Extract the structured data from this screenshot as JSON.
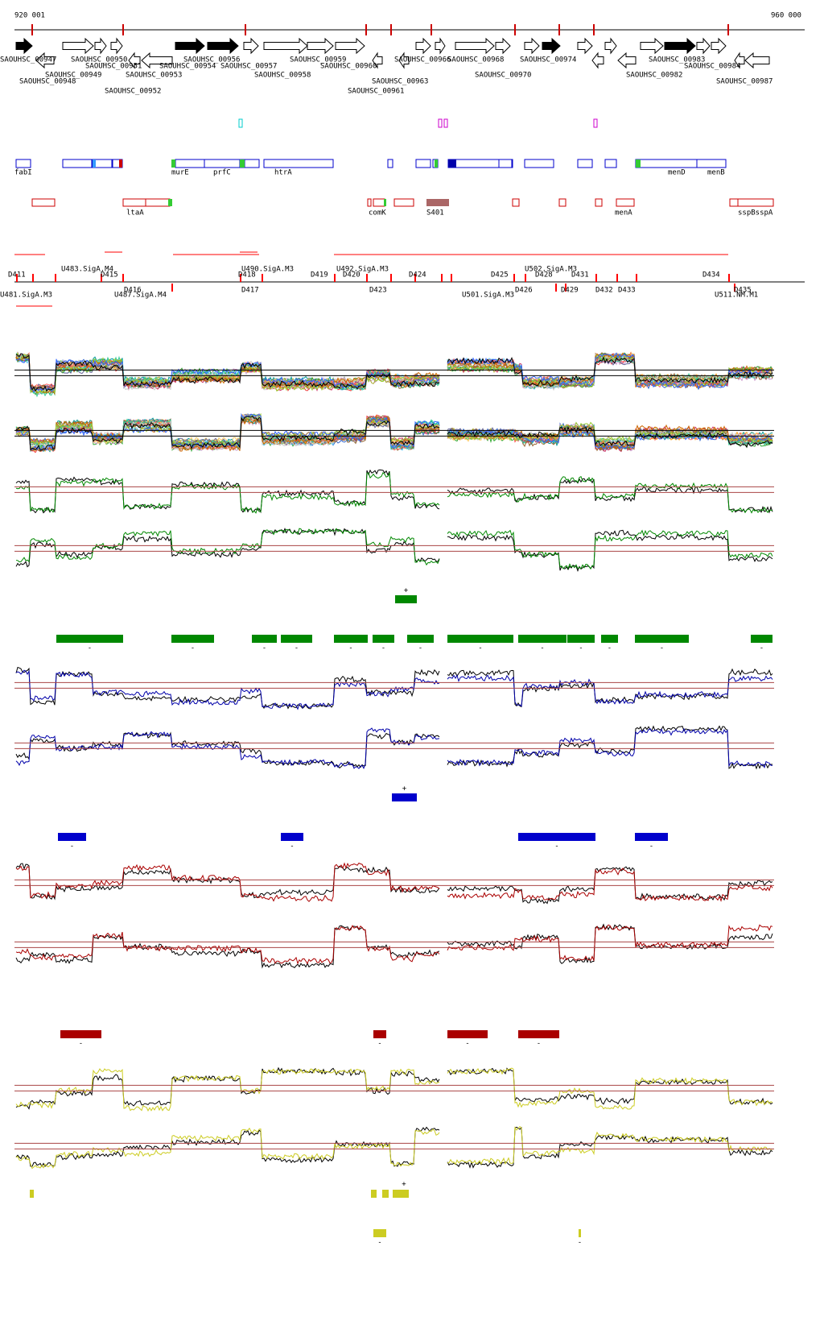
{
  "ruler": {
    "start": "920 001",
    "end": "960 000"
  },
  "genes": [
    "SAOUHSC_00947",
    "SAOUHSC_00950",
    "SAOUHSC_00956",
    "SAOUHSC_00959",
    "SAOUHSC_00966",
    "SAOUHSC_00968",
    "SAOUHSC_00974",
    "SAOUHSC_00983",
    "SAOUHSC_00951",
    "SAOUHSC_00954",
    "SAOUHSC_00957",
    "SAOUHSC_00960",
    "SAOUHSC_00984",
    "SAOUHSC_00949",
    "SAOUHSC_00953",
    "SAOUHSC_00958",
    "SAOUHSC_00970",
    "SAOUHSC_00982",
    "SAOUHSC_00948",
    "SAOUHSC_00963",
    "SAOUHSC_00987",
    "SAOUHSC_00952",
    "SAOUHSC_00961"
  ],
  "features_row1": [
    "fabI",
    "murE",
    "prfC",
    "htrA",
    "menD",
    "menB"
  ],
  "features_row2": [
    "ltaA",
    "comK",
    "S401",
    "menA",
    "sspBsspA"
  ],
  "elements": [
    "D411",
    "D415",
    "D418",
    "D419",
    "D420",
    "D424",
    "D425",
    "D428",
    "D431",
    "D434",
    "U483.SigA.M4",
    "U490.SigA.M3",
    "U492.SigA.M3",
    "U502.SigA.M3",
    "D416",
    "D417",
    "D423",
    "D426",
    "D429",
    "D432",
    "D433",
    "D435",
    "U487.SigA.M4",
    "U501.SigA.M3",
    "U511.NM.M1",
    "U481.SigA.M3"
  ],
  "strand": {
    "plus": "+",
    "minus": "-"
  }
}
